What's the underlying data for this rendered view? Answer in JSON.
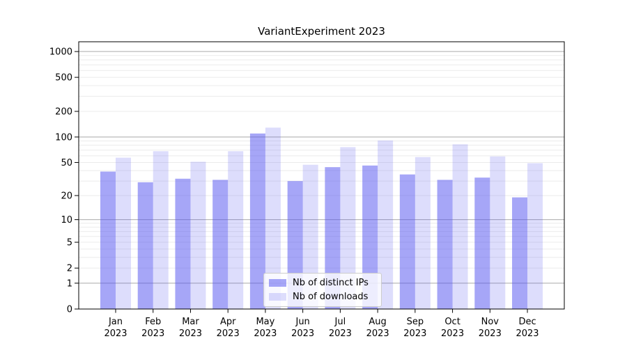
{
  "title": "VariantExperiment 2023",
  "chart_data": {
    "type": "bar",
    "title": "VariantExperiment 2023",
    "categories": [
      {
        "month": "Jan",
        "year": "2023"
      },
      {
        "month": "Feb",
        "year": "2023"
      },
      {
        "month": "Mar",
        "year": "2023"
      },
      {
        "month": "Apr",
        "year": "2023"
      },
      {
        "month": "May",
        "year": "2023"
      },
      {
        "month": "Jun",
        "year": "2023"
      },
      {
        "month": "Jul",
        "year": "2023"
      },
      {
        "month": "Aug",
        "year": "2023"
      },
      {
        "month": "Sep",
        "year": "2023"
      },
      {
        "month": "Oct",
        "year": "2023"
      },
      {
        "month": "Nov",
        "year": "2023"
      },
      {
        "month": "Dec",
        "year": "2023"
      }
    ],
    "series": [
      {
        "name": "Nb of distinct IPs",
        "color": "rgba(85,85,240,0.52)",
        "values": [
          39,
          29,
          32,
          31,
          110,
          30,
          44,
          46,
          36,
          31,
          33,
          19
        ]
      },
      {
        "name": "Nb of downloads",
        "color": "rgba(85,85,240,0.20)",
        "values": [
          57,
          68,
          51,
          68,
          129,
          47,
          76,
          91,
          58,
          82,
          59,
          49
        ]
      }
    ],
    "y_scale": "log1p",
    "y_ticks": [
      0,
      1,
      2,
      5,
      10,
      20,
      50,
      100,
      200,
      500,
      1000
    ],
    "ylim": [
      0,
      1300
    ],
    "grid": "horizontal major+minor",
    "legend_position": "lower center"
  },
  "colors": {
    "bar_base": "#5555f0",
    "minor_grid": "#ebebeb",
    "major_grid": "#a9a9a9",
    "axis": "#000000",
    "text": "#000000",
    "legend_border": "#cccccc"
  }
}
